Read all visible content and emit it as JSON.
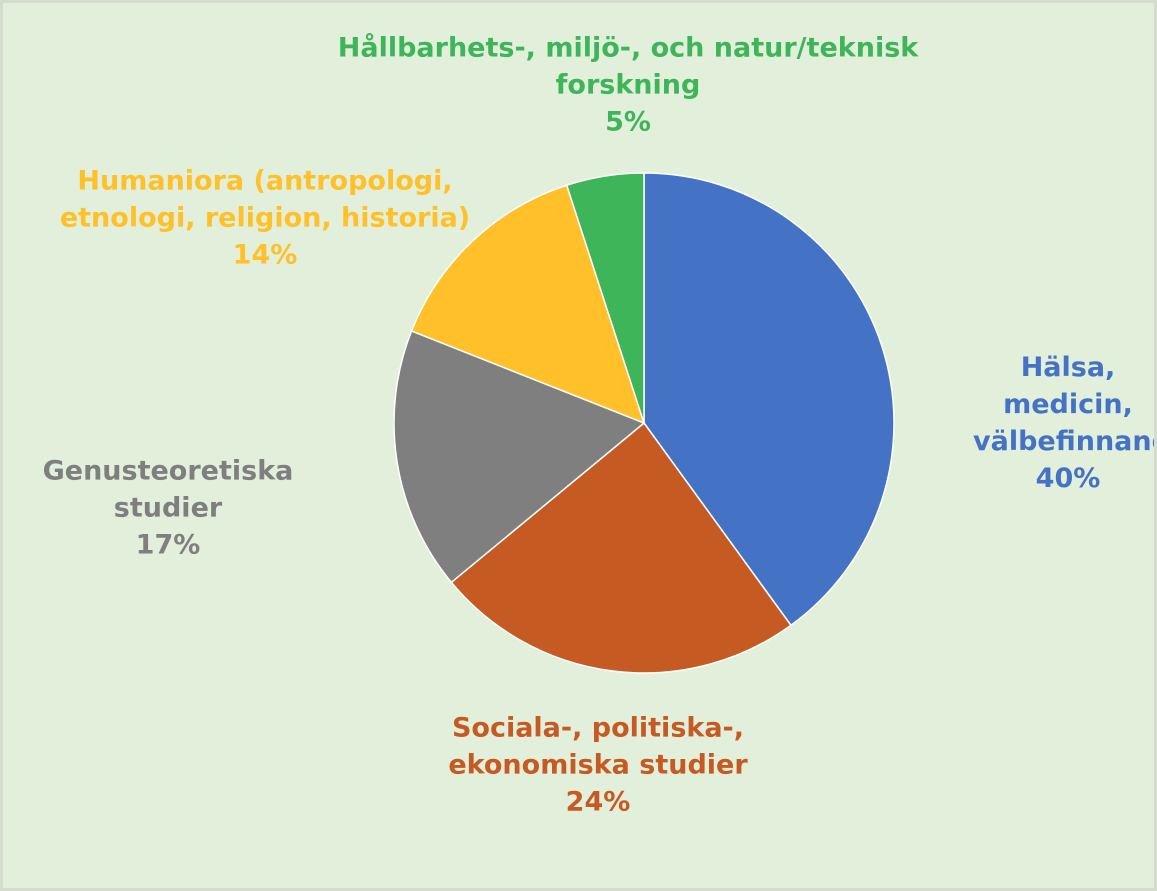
{
  "chart_data": {
    "type": "pie",
    "categories": [
      "Hälsa, medicin, välbefinnande",
      "Sociala-, politiska-, ekonomiska studier",
      "Genusteoretiska studier",
      "Humaniora (antropologi, etnologi, religion, historia)",
      "Hållbarhets-, miljö-, och natur/teknisk forskning"
    ],
    "values": [
      40,
      24,
      17,
      14,
      5
    ],
    "value_labels": [
      "40%",
      "24%",
      "17%",
      "14%",
      "5%"
    ],
    "colors": [
      "#4472c4",
      "#c55a22",
      "#7f7f7f",
      "#ffc02a",
      "#3fb55a"
    ]
  }
}
